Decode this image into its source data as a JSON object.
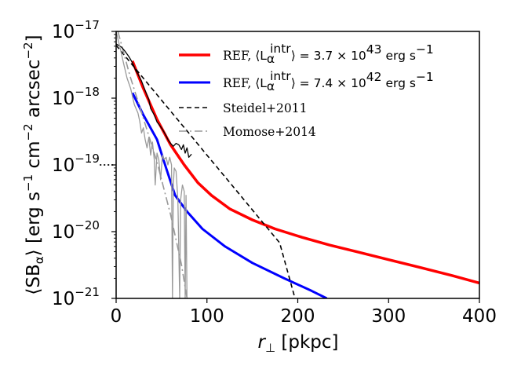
{
  "chart_data": {
    "type": "line",
    "xlabel": {
      "var": "r",
      "sub": "⊥",
      "unit": " [pkpc]"
    },
    "ylabel": {
      "pre": "⟨SB",
      "sub": "α",
      "post": "⟩ [erg s",
      "e1": "−1",
      "mid1": " cm",
      "e2": "−2",
      "mid2": " arcsec",
      "e3": "−2",
      "end": "]"
    },
    "xlim": [
      0,
      400
    ],
    "ylim": [
      1e-21,
      1e-17
    ],
    "yscale": "log",
    "grid": false,
    "legend_position": "top-right",
    "x_ticks": [
      {
        "value": 0,
        "label": "0"
      },
      {
        "value": 100,
        "label": "100"
      },
      {
        "value": 200,
        "label": "200"
      },
      {
        "value": 300,
        "label": "300"
      },
      {
        "value": 400,
        "label": "400"
      }
    ],
    "y_ticks": [
      {
        "value": 1e-21,
        "base": "10",
        "exp": "−21"
      },
      {
        "value": 1e-20,
        "base": "10",
        "exp": "−20"
      },
      {
        "value": 1e-19,
        "base": "10",
        "exp": "−19"
      },
      {
        "value": 1e-18,
        "base": "10",
        "exp": "−18"
      },
      {
        "value": 1e-17,
        "base": "10",
        "exp": "−17"
      }
    ],
    "series": [
      {
        "name": "REF, ⟨L_α^intr⟩ = 3.7 × 10^43 erg s^−1",
        "legend": {
          "pre": "REF, ⟨L",
          "sub": "α",
          "sup": "intr",
          "mid": "⟩ = 3.7 × 10",
          "exp": "43",
          "unit": " erg s",
          "uexp": "−1"
        },
        "color": "#ff0000",
        "style": "solid",
        "width": 3.5,
        "points": [
          [
            18,
            3.6e-18
          ],
          [
            30,
            1.4e-18
          ],
          [
            45,
            4.8e-19
          ],
          [
            60,
            2e-19
          ],
          [
            75,
            1e-19
          ],
          [
            90,
            5.4e-20
          ],
          [
            105,
            3.5e-20
          ],
          [
            125,
            2.2e-20
          ],
          [
            150,
            1.5e-20
          ],
          [
            175,
            1.1e-20
          ],
          [
            205,
            8.2e-21
          ],
          [
            235,
            6.3e-21
          ],
          [
            265,
            5e-21
          ],
          [
            300,
            3.8e-21
          ],
          [
            335,
            2.9e-21
          ],
          [
            370,
            2.2e-21
          ],
          [
            400,
            1.7e-21
          ]
        ]
      },
      {
        "name": "REF, ⟨L_α^intr⟩ = 7.4 × 10^42 erg s^−1",
        "legend": {
          "pre": "REF, ⟨L",
          "sub": "α",
          "sup": "intr",
          "mid": "⟩ = 7.4 × 10",
          "exp": "42",
          "unit": " erg s",
          "uexp": "−1"
        },
        "color": "#0000ff",
        "style": "solid",
        "width": 3,
        "points": [
          [
            18,
            1.2e-18
          ],
          [
            30,
            5.6e-19
          ],
          [
            45,
            2.4e-19
          ],
          [
            55,
            9e-20
          ],
          [
            65,
            3.5e-20
          ],
          [
            78,
            2e-20
          ],
          [
            95,
            1.1e-20
          ],
          [
            120,
            6e-21
          ],
          [
            150,
            3.4e-21
          ],
          [
            185,
            2e-21
          ],
          [
            215,
            1.3e-21
          ],
          [
            232,
            1e-21
          ]
        ]
      },
      {
        "name": "Steidel+2011",
        "legend": {
          "pre": "Steidel+2011"
        },
        "color": "#000000",
        "style": "dashed",
        "width": 1.6,
        "points": [
          [
            0,
            6.2e-18
          ],
          [
            20,
            2.9e-18
          ],
          [
            40,
            1.36e-18
          ],
          [
            60,
            6.4e-19
          ],
          [
            80,
            3e-19
          ],
          [
            100,
            1.4e-19
          ],
          [
            120,
            6.6e-20
          ],
          [
            140,
            3.1e-20
          ],
          [
            160,
            1.45e-20
          ],
          [
            180,
            6.8e-21
          ],
          [
            197,
            1e-21
          ]
        ]
      },
      {
        "name": "Momose+2014",
        "legend": {
          "pre": "Momose+2014"
        },
        "color": "#999999",
        "style": "dashdot",
        "width": 1.6,
        "points": [
          [
            2,
            1e-17
          ],
          [
            15,
            2.2e-18
          ],
          [
            30,
            5e-19
          ],
          [
            45,
            1.1e-19
          ],
          [
            60,
            1.8e-20
          ],
          [
            72,
            3.2e-21
          ],
          [
            78,
            1e-21
          ]
        ]
      }
    ],
    "extra_lines": [
      {
        "label": "Steidel+2011 data",
        "color": "#000000",
        "width": 1.3,
        "points": [
          [
            0,
            6.5e-18
          ],
          [
            6,
            5.8e-18
          ],
          [
            10,
            5e-18
          ],
          [
            14,
            4.2e-18
          ],
          [
            18,
            3.4e-18
          ],
          [
            21,
            2.7e-18
          ],
          [
            24,
            2.3e-18
          ],
          [
            28,
            1.8e-18
          ],
          [
            32,
            1.3e-18
          ],
          [
            36,
            9.5e-19
          ],
          [
            38,
            7e-19
          ],
          [
            42,
            5.6e-19
          ],
          [
            45,
            4.4e-19
          ],
          [
            48,
            3.9e-19
          ],
          [
            51,
            3.4e-19
          ],
          [
            54,
            2.9e-19
          ],
          [
            57,
            2.4e-19
          ],
          [
            60,
            2.1e-19
          ],
          [
            63,
            1.9e-19
          ],
          [
            66,
            2.1e-19
          ],
          [
            69,
            2e-19
          ],
          [
            72,
            1.7e-19
          ],
          [
            74,
            2e-19
          ],
          [
            76,
            1.5e-19
          ],
          [
            78,
            1.8e-19
          ],
          [
            80,
            1.3e-19
          ],
          [
            83,
            1.45e-19
          ]
        ]
      },
      {
        "label": "Steidel+2011 floor",
        "color": "#000000",
        "width": 1.8,
        "style": "dotted",
        "points": [
          [
            -18,
            1e-19
          ],
          [
            -3,
            1e-19
          ]
        ]
      },
      {
        "label": "Momose+2014 data",
        "color": "#9a9a9a",
        "width": 1.3,
        "points": [
          [
            0,
            1e-17
          ],
          [
            5,
            5.2e-18
          ],
          [
            8,
            3.4e-18
          ],
          [
            12,
            2e-18
          ],
          [
            16,
            1.4e-18
          ],
          [
            20,
            8e-19
          ],
          [
            24,
            6e-19
          ],
          [
            26,
            4.5e-19
          ],
          [
            28,
            3e-19
          ],
          [
            30,
            3.6e-19
          ],
          [
            32,
            2.4e-19
          ],
          [
            34,
            1.8e-19
          ],
          [
            36,
            2.6e-19
          ],
          [
            38,
            1.4e-19
          ],
          [
            40,
            2.2e-19
          ],
          [
            42,
            1.2e-19
          ],
          [
            43,
            5e-20
          ],
          [
            45,
            1.5e-19
          ],
          [
            47,
            1.2e-19
          ],
          [
            49,
            6e-20
          ],
          [
            51,
            1.4e-19
          ],
          [
            53,
            1.2e-19
          ],
          [
            55,
            1.3e-19
          ],
          [
            57,
            1e-19
          ],
          [
            59,
            1.3e-19
          ],
          [
            61,
            1e-19
          ],
          [
            62,
            1e-21
          ],
          [
            63,
            5e-20
          ],
          [
            64,
            9e-20
          ],
          [
            66,
            8e-20
          ],
          [
            68,
            3e-20
          ],
          [
            70,
            1e-21
          ],
          [
            71,
            3e-20
          ],
          [
            73,
            5e-20
          ],
          [
            75,
            4e-20
          ],
          [
            76,
            1e-21
          ],
          [
            77,
            3.5e-20
          ],
          [
            78,
            1e-21
          ]
        ]
      }
    ]
  }
}
